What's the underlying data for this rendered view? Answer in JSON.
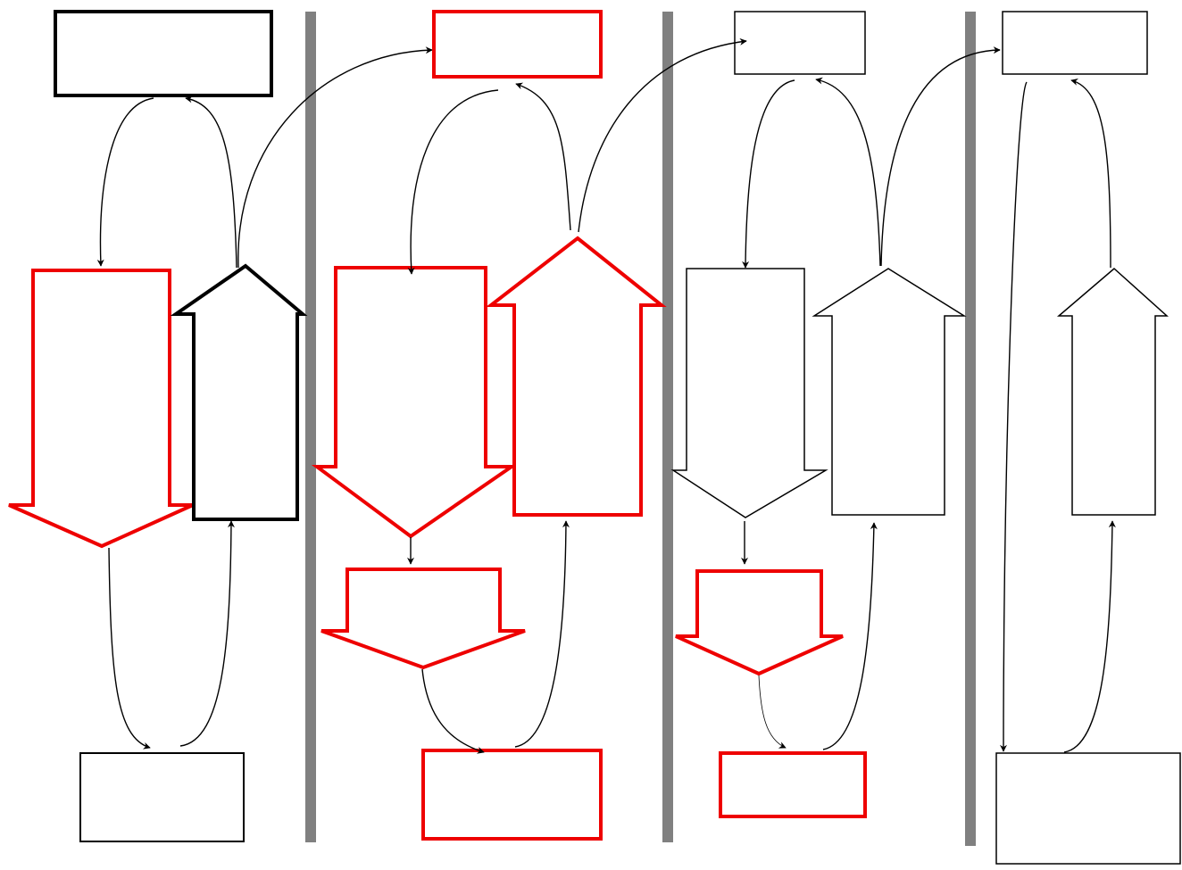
{
  "diagram": {
    "panels": [
      {
        "id": "panel-1",
        "highlighted": [
          "down-arrow-large"
        ]
      },
      {
        "id": "panel-2",
        "highlighted": [
          "top-box",
          "down-arrow-large",
          "up-arrow",
          "down-arrow-small",
          "bottom-box"
        ]
      },
      {
        "id": "panel-3",
        "highlighted": [
          "down-arrow-small",
          "bottom-box"
        ]
      },
      {
        "id": "panel-4",
        "highlighted": []
      }
    ],
    "colors": {
      "highlight": "#ee0000",
      "normal": "#000000",
      "separator": "#808080",
      "background": "#ffffff"
    }
  }
}
